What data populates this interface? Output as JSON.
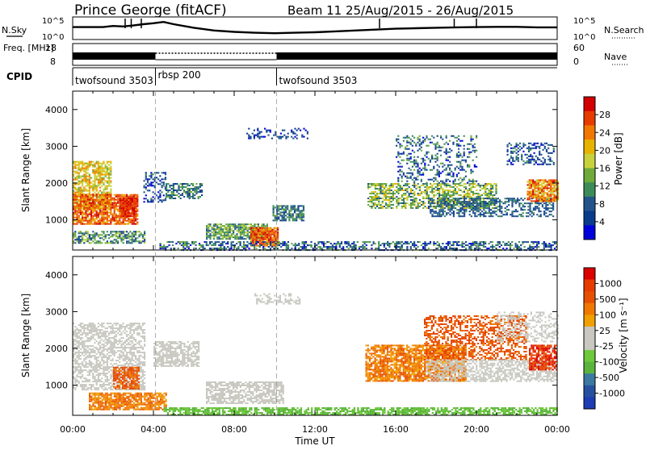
{
  "header": {
    "station": "Prince George (fitACF)",
    "beam_info": "Beam 11  25/Aug/2015 - 26/Aug/2015"
  },
  "chart_data": [
    {
      "type": "line",
      "name": "noise-panel",
      "left_label": "N.Sky",
      "right_label": "N.Search",
      "yscale": "log",
      "left_ticks": [
        "10^5",
        "10^0"
      ],
      "right_ticks": [
        "10^5",
        "10^0"
      ],
      "x": [
        0,
        0.5,
        1,
        1.5,
        2,
        2.5,
        3,
        3.5,
        4,
        4.5,
        5,
        6,
        7,
        8,
        9,
        10,
        11,
        12,
        13,
        14,
        15,
        16,
        17,
        18,
        19,
        20,
        21,
        22,
        23,
        24
      ],
      "y_rel": [
        0.45,
        0.45,
        0.45,
        0.45,
        0.4,
        0.42,
        0.38,
        0.32,
        0.28,
        0.22,
        0.32,
        0.48,
        0.6,
        0.66,
        0.7,
        0.72,
        0.7,
        0.68,
        0.64,
        0.6,
        0.56,
        0.52,
        0.5,
        0.48,
        0.46,
        0.45,
        0.44,
        0.44,
        0.46,
        0.46
      ],
      "spikes_x": [
        2.6,
        2.9,
        3.4,
        15.2,
        18.9,
        20.0
      ]
    },
    {
      "type": "line",
      "name": "freq-nave-panel",
      "left_label": "Freq. [MHz]",
      "right_label": "Nave",
      "left_ticks": [
        "18",
        "8"
      ],
      "right_ticks": [
        "60",
        "0"
      ],
      "freq_segments": [
        [
          0,
          4.1
        ],
        [
          10.1,
          24
        ]
      ],
      "nave_segment": [
        4.1,
        10.1
      ]
    },
    {
      "type": "table",
      "name": "cpid-panel",
      "label": "CPID",
      "programs": [
        {
          "start": 0,
          "end": 4.1,
          "label": "twofsound 3503"
        },
        {
          "start": 4.1,
          "end": 10.1,
          "label": "rbsp 200"
        },
        {
          "start": 10.1,
          "end": 24,
          "label": "twofsound 3503"
        }
      ]
    },
    {
      "type": "heatmap",
      "name": "power-panel",
      "ylabel": "Slant Range [km]",
      "xlabel": "",
      "xlim": [
        0,
        24
      ],
      "ylim": [
        180,
        4500
      ],
      "yticks": [
        1000,
        2000,
        3000,
        4000
      ],
      "colorbar_label": "Power [dB]",
      "colorbar_ticks": [
        "28",
        "24",
        "20",
        "16",
        "12",
        "8",
        "4"
      ],
      "colors": [
        "#0000dc",
        "#0a3c8c",
        "#23548c",
        "#3c8c5a",
        "#6eaa3c",
        "#c8d23c",
        "#e6b400",
        "#f07800",
        "#e63c00",
        "#d20000"
      ],
      "clusters": [
        {
          "t0": 0.0,
          "t1": 1.9,
          "r0": 1300,
          "r1": 2600,
          "v": [
            4,
            7
          ],
          "d": 0.7
        },
        {
          "t0": 0.0,
          "t1": 3.2,
          "r0": 900,
          "r1": 1700,
          "v": [
            6,
            9
          ],
          "d": 0.8
        },
        {
          "t0": 2.3,
          "t1": 3.1,
          "r0": 1100,
          "r1": 1600,
          "v": [
            8,
            9
          ],
          "d": 0.9
        },
        {
          "t0": 0.0,
          "t1": 3.6,
          "r0": 350,
          "r1": 700,
          "v": [
            1,
            5
          ],
          "d": 0.6
        },
        {
          "t0": 3.5,
          "t1": 4.6,
          "r0": 1500,
          "r1": 2300,
          "v": [
            0,
            3
          ],
          "d": 0.4
        },
        {
          "t0": 4.6,
          "t1": 6.4,
          "r0": 1600,
          "r1": 2000,
          "v": [
            1,
            4
          ],
          "d": 0.6
        },
        {
          "t0": 6.6,
          "t1": 9.6,
          "r0": 500,
          "r1": 900,
          "v": [
            2,
            5
          ],
          "d": 0.8
        },
        {
          "t0": 8.8,
          "t1": 10.2,
          "r0": 280,
          "r1": 800,
          "v": [
            6,
            9
          ],
          "d": 0.9
        },
        {
          "t0": 9.9,
          "t1": 11.4,
          "r0": 1000,
          "r1": 1400,
          "v": [
            1,
            4
          ],
          "d": 0.7
        },
        {
          "t0": 4.3,
          "t1": 24.0,
          "r0": 200,
          "r1": 420,
          "v": [
            0,
            4
          ],
          "d": 0.5
        },
        {
          "t0": 8.6,
          "t1": 11.6,
          "r0": 3200,
          "r1": 3500,
          "v": [
            0,
            2
          ],
          "d": 0.3
        },
        {
          "t0": 14.6,
          "t1": 21.0,
          "r0": 1300,
          "r1": 2000,
          "v": [
            2,
            6
          ],
          "d": 0.6
        },
        {
          "t0": 16.0,
          "t1": 20.0,
          "r0": 2000,
          "r1": 3300,
          "v": [
            0,
            4
          ],
          "d": 0.3
        },
        {
          "t0": 17.6,
          "t1": 23.8,
          "r0": 1100,
          "r1": 1600,
          "v": [
            1,
            3
          ],
          "d": 0.5
        },
        {
          "t0": 22.5,
          "t1": 24.0,
          "r0": 1500,
          "r1": 2100,
          "v": [
            5,
            9
          ],
          "d": 0.8
        },
        {
          "t0": 21.5,
          "t1": 23.8,
          "r0": 2500,
          "r1": 3100,
          "v": [
            0,
            3
          ],
          "d": 0.4
        }
      ]
    },
    {
      "type": "heatmap",
      "name": "velocity-panel",
      "ylabel": "Slant Range [km]",
      "xlabel": "Time UT",
      "xlim": [
        0,
        24
      ],
      "ylim": [
        180,
        4500
      ],
      "yticks": [
        1000,
        2000,
        3000,
        4000
      ],
      "xticks": [
        "00:00",
        "04:00",
        "08:00",
        "12:00",
        "16:00",
        "20:00",
        "00:00"
      ],
      "colorbar_label": "Velocity [m s⁻¹]",
      "colorbar_ticks": [
        "1000",
        "500",
        "100",
        "25",
        "-25",
        "-100",
        "-500",
        "-1000"
      ],
      "colors": [
        "#1e3cb4",
        "#2850a0",
        "#3c78a0",
        "#5ab43c",
        "#6ec83c",
        "#c8c8c0",
        "#c8c8c0",
        "#f0a000",
        "#f07800",
        "#e65000",
        "#e63c00",
        "#dc0000"
      ],
      "clusters": [
        {
          "t0": 0.0,
          "t1": 3.6,
          "r0": 900,
          "r1": 2700,
          "v": [
            5,
            6
          ],
          "d": 0.6
        },
        {
          "t0": 2.0,
          "t1": 3.3,
          "r0": 900,
          "r1": 1500,
          "v": [
            8,
            10
          ],
          "d": 0.8
        },
        {
          "t0": 0.8,
          "t1": 4.6,
          "r0": 350,
          "r1": 800,
          "v": [
            7,
            9
          ],
          "d": 0.8
        },
        {
          "t0": 4.0,
          "t1": 6.2,
          "r0": 1500,
          "r1": 2200,
          "v": [
            5,
            6
          ],
          "d": 0.7
        },
        {
          "t0": 6.6,
          "t1": 10.4,
          "r0": 500,
          "r1": 1100,
          "v": [
            5,
            6
          ],
          "d": 0.7
        },
        {
          "t0": 4.5,
          "t1": 24.0,
          "r0": 200,
          "r1": 400,
          "v": [
            3,
            4
          ],
          "d": 0.7
        },
        {
          "t0": 9.0,
          "t1": 11.2,
          "r0": 3200,
          "r1": 3500,
          "v": [
            5,
            6
          ],
          "d": 0.4
        },
        {
          "t0": 14.5,
          "t1": 19.5,
          "r0": 1100,
          "r1": 2100,
          "v": [
            7,
            9
          ],
          "d": 0.8
        },
        {
          "t0": 17.4,
          "t1": 22.5,
          "r0": 1700,
          "r1": 2900,
          "v": [
            8,
            10
          ],
          "d": 0.5
        },
        {
          "t0": 17.5,
          "t1": 24.0,
          "r0": 1100,
          "r1": 1700,
          "v": [
            5,
            6
          ],
          "d": 0.6
        },
        {
          "t0": 22.6,
          "t1": 24.0,
          "r0": 1400,
          "r1": 2100,
          "v": [
            9,
            11
          ],
          "d": 0.8
        },
        {
          "t0": 21.0,
          "t1": 24.0,
          "r0": 2200,
          "r1": 3000,
          "v": [
            5,
            6
          ],
          "d": 0.4
        }
      ]
    }
  ]
}
